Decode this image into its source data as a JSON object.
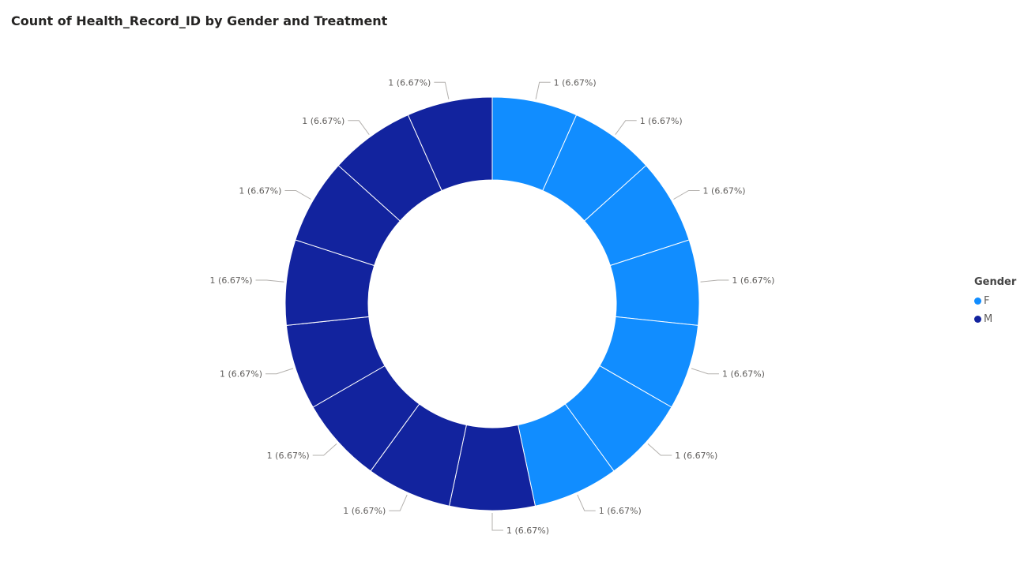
{
  "chart_data": {
    "type": "pie",
    "variant": "donut",
    "title": "Count of Health_Record_ID by Gender and Treatment",
    "legend": {
      "title": "Gender",
      "position": "right",
      "items": [
        {
          "name": "F",
          "color": "#118DFF"
        },
        {
          "name": "M",
          "color": "#12239E"
        }
      ]
    },
    "slices": [
      {
        "series": "F",
        "value": 1,
        "label": "1 (6.67%)"
      },
      {
        "series": "F",
        "value": 1,
        "label": "1 (6.67%)"
      },
      {
        "series": "F",
        "value": 1,
        "label": "1 (6.67%)"
      },
      {
        "series": "F",
        "value": 1,
        "label": "1 (6.67%)"
      },
      {
        "series": "F",
        "value": 1,
        "label": "1 (6.67%)"
      },
      {
        "series": "F",
        "value": 1,
        "label": "1 (6.67%)"
      },
      {
        "series": "F",
        "value": 1,
        "label": "1 (6.67%)"
      },
      {
        "series": "M",
        "value": 1,
        "label": "1 (6.67%)"
      },
      {
        "series": "M",
        "value": 1,
        "label": "1 (6.67%)"
      },
      {
        "series": "M",
        "value": 1,
        "label": "1 (6.67%)"
      },
      {
        "series": "M",
        "value": 1,
        "label": "1 (6.67%)"
      },
      {
        "series": "M",
        "value": 1,
        "label": "1 (6.67%)"
      },
      {
        "series": "M",
        "value": 1,
        "label": "1 (6.67%)"
      },
      {
        "series": "M",
        "value": 1,
        "label": "1 (6.67%)"
      },
      {
        "series": "M",
        "value": 1,
        "label": "1 (6.67%)"
      }
    ]
  }
}
